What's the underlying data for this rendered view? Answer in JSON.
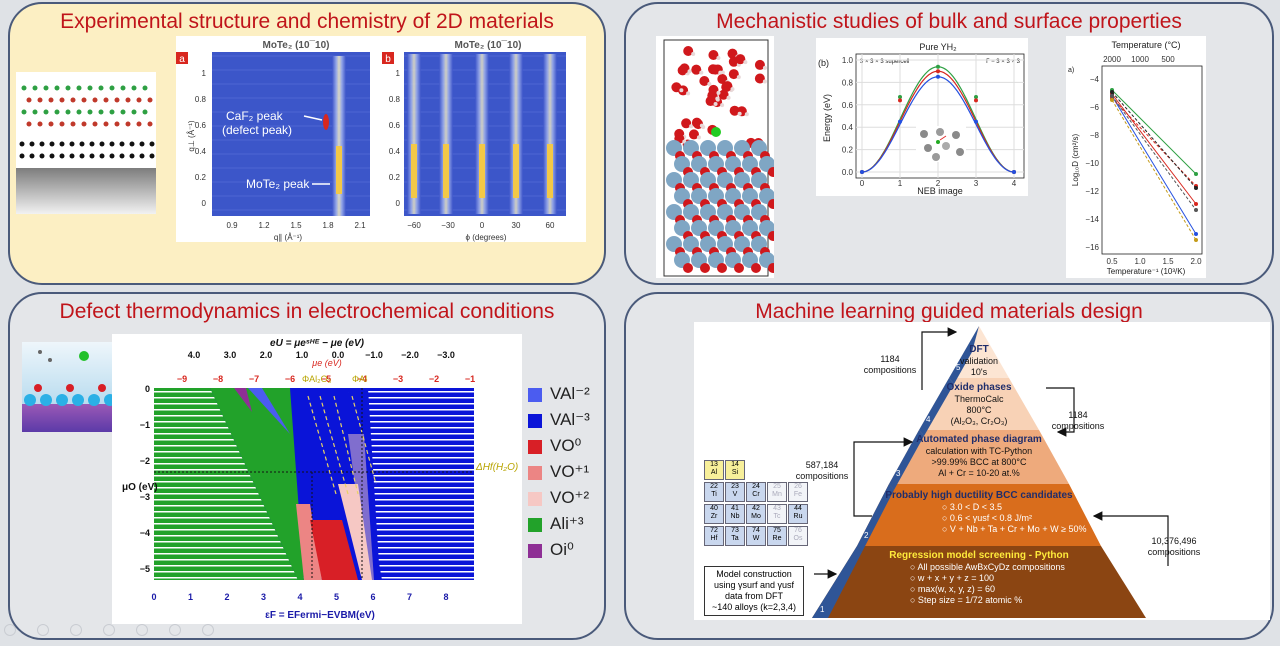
{
  "panels": {
    "exp": {
      "title": "Experimental structure and chemistry of 2D materials"
    },
    "mech": {
      "title": "Mechanistic studies of bulk and surface properties"
    },
    "defect": {
      "title": "Defect thermodynamics in electrochemical conditions"
    },
    "ml": {
      "title": "Machine learning guided materials design"
    }
  },
  "xrd": {
    "a": {
      "label": "a",
      "title": "MoTe₂ (10¯10)",
      "xlabel": "q∥ (Å⁻¹)",
      "ylabel": "q⊥ (Å⁻¹)",
      "xticks": [
        "0.9",
        "1.2",
        "1.5",
        "1.8",
        "2.1"
      ],
      "yticks": [
        "1",
        "0.8",
        "0.6",
        "0.4",
        "0.2",
        "0"
      ],
      "ann1": "CaF₂ peak",
      "ann2": "(defect peak)",
      "ann3": "MoTe₂ peak"
    },
    "b": {
      "label": "b",
      "title": "MoTe₂ (10¯10)",
      "xlabel": "ϕ (degrees)",
      "ylabel": "q⊥ (Å⁻¹)",
      "xticks": [
        "−60",
        "−30",
        "0",
        "30",
        "60"
      ],
      "yticks": [
        "1",
        "0.8",
        "0.6",
        "0.4",
        "0.2",
        "0"
      ]
    }
  },
  "neb": {
    "panel_label": "(b)",
    "title": "Pure YH₂",
    "sub_left": "3 × 3 × 3 supercell",
    "sub_right": "Γ − 3 × 3 × 3",
    "xlabel": "NEB image",
    "ylabel": "Energy (eV)",
    "xticks": [
      "0",
      "1",
      "2",
      "3",
      "4"
    ],
    "yticks": [
      "1.0",
      "0.8",
      "0.6",
      "0.4",
      "0.2",
      "0.0"
    ]
  },
  "arrh": {
    "panel_label": "a)",
    "toplabel": "Temperature (°C)",
    "topticks": [
      "2000",
      "1000",
      "500"
    ],
    "xlabel": "Temperature⁻¹ (10³/K)",
    "ylabel": "Log₁₀D (cm²/s)",
    "xticks": [
      "0.5",
      "1.0",
      "1.5",
      "2.0"
    ],
    "yticks": [
      "−4",
      "−6",
      "−8",
      "−10",
      "−12",
      "−14",
      "−16"
    ]
  },
  "phase": {
    "top_axis_title": "eU = μeˢᴴᴱ − μe (eV)",
    "top_ticks": [
      "4.0",
      "3.0",
      "2.0",
      "1.0",
      "0.0",
      "−1.0",
      "−2.0",
      "−3.0"
    ],
    "mu_title": "μe (eV)",
    "mu_ticks": [
      "−9",
      "−8",
      "−7",
      "−6",
      "−5",
      "−4",
      "−3",
      "−2",
      "−1"
    ],
    "phi1": "ΦAl₂O₃",
    "phi2": "ΦAl",
    "ylabel": "μO (eV)",
    "yticks": [
      "0",
      "−1",
      "−2",
      "−3",
      "−4",
      "−5"
    ],
    "xlabel": "εF = EFermi−EVBM(eV)",
    "xticks": [
      "0",
      "1",
      "2",
      "3",
      "4",
      "5",
      "6",
      "7",
      "8"
    ],
    "dh_label": "ΔHf(H₂O)",
    "legend": [
      {
        "label": "VAl⁻²",
        "color": "#4b5cf0"
      },
      {
        "label": "VAl⁻³",
        "color": "#0a14d8"
      },
      {
        "label": "VO⁰",
        "color": "#d81f26"
      },
      {
        "label": "VO⁺¹",
        "color": "#ec8584"
      },
      {
        "label": "VO⁺²",
        "color": "#f6c8c4"
      },
      {
        "label": "Ali⁺³",
        "color": "#22a22a"
      },
      {
        "label": "Oi⁰",
        "color": "#8e2f95"
      }
    ]
  },
  "pyramid": {
    "tiers": [
      {
        "num": "5",
        "title": "DFT",
        "lines": [
          "validation",
          "10's"
        ]
      },
      {
        "num": "4",
        "title": "Oxide phases",
        "lines": [
          "ThermoCalc",
          "800°C",
          "(Al₂O₃, Cr₂O₃)"
        ]
      },
      {
        "num": "3",
        "title": "Automated phase diagram",
        "lines": [
          "calculation with TC-Python",
          ">99.99% BCC at 800°C",
          "Al + Cr = 10-20 at.%"
        ]
      },
      {
        "num": "2",
        "title": "Probably high ductility BCC candidates",
        "lines": [
          "○  3.0 < D < 3.5",
          "○  0.6 < γusf < 0.8 J/m²",
          "○  V + Nb + Ta + Cr + Mo + W ≥ 50%"
        ]
      },
      {
        "num": "1",
        "title": "Regression model screening - Python",
        "lines": [
          "○  All possible AwBxCyDz compositions",
          "○  w + x + y + z = 100",
          "○  max(w, x, y, z) = 60",
          "○  Step size = 1/72 atomic %"
        ]
      }
    ],
    "counts": [
      {
        "value": "1184",
        "label": "compositions"
      },
      {
        "value": "1184",
        "label": "compositions"
      },
      {
        "value": "587,184",
        "label": "compositions"
      },
      {
        "value": "10,376,496",
        "label": "compositions"
      }
    ],
    "model_box": [
      "Model construction",
      "using γsurf and γusf",
      "data from DFT",
      "~140 alloys (k=2,3,4)"
    ],
    "ptable": [
      [
        "13",
        "Al"
      ],
      [
        "14",
        "Si"
      ],
      [
        "22",
        "Ti"
      ],
      [
        "23",
        "V"
      ],
      [
        "24",
        "Cr"
      ],
      [
        "25",
        "Mn"
      ],
      [
        "26",
        "Fe"
      ],
      [
        "40",
        "Zr"
      ],
      [
        "41",
        "Nb"
      ],
      [
        "42",
        "Mo"
      ],
      [
        "43",
        "Tc"
      ],
      [
        "44",
        "Ru"
      ],
      [
        "72",
        "Hf"
      ],
      [
        "73",
        "Ta"
      ],
      [
        "74",
        "W"
      ],
      [
        "75",
        "Re"
      ],
      [
        "76",
        "Os"
      ]
    ]
  }
}
